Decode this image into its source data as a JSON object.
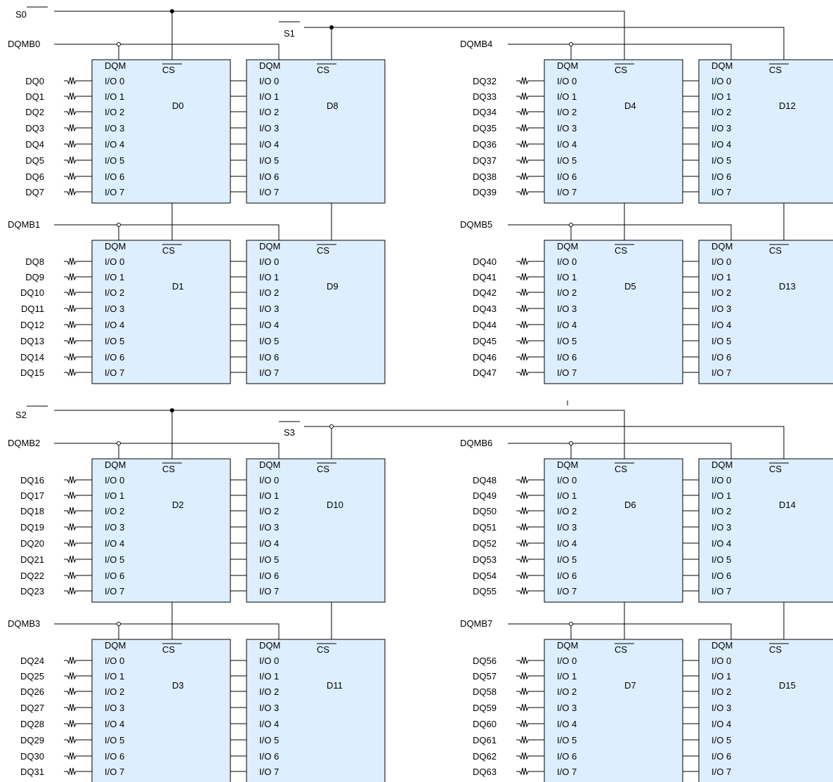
{
  "pin_labels": {
    "dqm": "DQM",
    "cs": "CS",
    "io": [
      "I/O 0",
      "I/O 1",
      "I/O 2",
      "I/O 3",
      "I/O 4",
      "I/O 5",
      "I/O 6",
      "I/O 7"
    ]
  },
  "selects": [
    "S0",
    "S1",
    "S2",
    "S3"
  ],
  "dqmb": [
    "DQMB0",
    "DQMB1",
    "DQMB2",
    "DQMB3",
    "DQMB4",
    "DQMB5",
    "DQMB6",
    "DQMB7"
  ],
  "chips": [
    "D0",
    "D1",
    "D2",
    "D3",
    "D4",
    "D5",
    "D6",
    "D7",
    "D8",
    "D9",
    "D10",
    "D11",
    "D12",
    "D13",
    "D14",
    "D15"
  ],
  "dq": [
    "DQ0",
    "DQ1",
    "DQ2",
    "DQ3",
    "DQ4",
    "DQ5",
    "DQ6",
    "DQ7",
    "DQ8",
    "DQ9",
    "DQ10",
    "DQ11",
    "DQ12",
    "DQ13",
    "DQ14",
    "DQ15",
    "DQ16",
    "DQ17",
    "DQ18",
    "DQ19",
    "DQ20",
    "DQ21",
    "DQ22",
    "DQ23",
    "DQ24",
    "DQ25",
    "DQ26",
    "DQ27",
    "DQ28",
    "DQ29",
    "DQ30",
    "DQ31",
    "DQ32",
    "DQ33",
    "DQ34",
    "DQ35",
    "DQ36",
    "DQ37",
    "DQ38",
    "DQ39",
    "DQ40",
    "DQ41",
    "DQ42",
    "DQ43",
    "DQ44",
    "DQ45",
    "DQ46",
    "DQ47",
    "DQ48",
    "DQ49",
    "DQ50",
    "DQ51",
    "DQ52",
    "DQ53",
    "DQ54",
    "DQ55",
    "DQ56",
    "DQ57",
    "DQ58",
    "DQ59",
    "DQ60",
    "DQ61",
    "DQ62",
    "DQ63"
  ]
}
